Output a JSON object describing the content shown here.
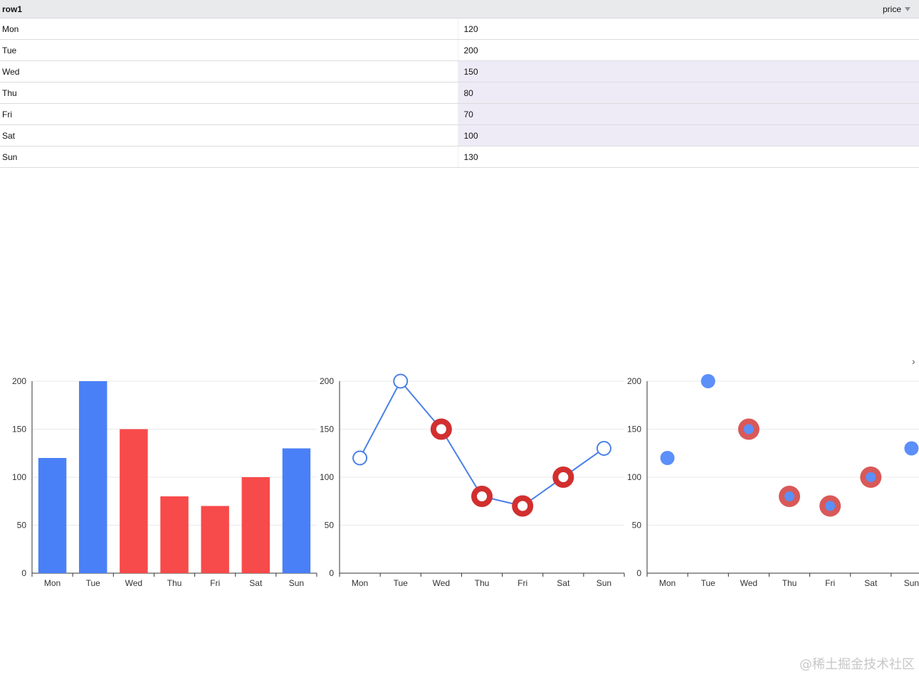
{
  "table": {
    "row_header": "row1",
    "value_header": "price",
    "rows": [
      {
        "label": "Mon",
        "value": "120"
      },
      {
        "label": "Tue",
        "value": "200"
      },
      {
        "label": "Wed",
        "value": "150"
      },
      {
        "label": "Thu",
        "value": "80"
      },
      {
        "label": "Fri",
        "value": "70"
      },
      {
        "label": "Sat",
        "value": "100"
      },
      {
        "label": "Sun",
        "value": "130"
      }
    ]
  },
  "watermark": "@稀土掘金技术社区",
  "next_arrow": "›",
  "chart_data": [
    {
      "type": "bar",
      "categories": [
        "Mon",
        "Tue",
        "Wed",
        "Thu",
        "Fri",
        "Sat",
        "Sun"
      ],
      "values": [
        120,
        200,
        150,
        80,
        70,
        100,
        130
      ],
      "highlighted": [
        "Wed",
        "Thu",
        "Fri",
        "Sat"
      ],
      "ylim": [
        0,
        200
      ],
      "yticks": [
        0,
        50,
        100,
        150,
        200
      ],
      "grid": true,
      "colors": {
        "base": "#4a80f7",
        "highlight": "#f74a4a"
      }
    },
    {
      "type": "line",
      "categories": [
        "Mon",
        "Tue",
        "Wed",
        "Thu",
        "Fri",
        "Sat",
        "Sun"
      ],
      "values": [
        120,
        200,
        150,
        80,
        70,
        100,
        130
      ],
      "highlighted": [
        "Wed",
        "Thu",
        "Fri",
        "Sat"
      ],
      "ylim": [
        0,
        200
      ],
      "yticks": [
        0,
        50,
        100,
        150,
        200
      ],
      "grid": true,
      "colors": {
        "line": "#4a80e8",
        "highlight": "#d22f2f"
      }
    },
    {
      "type": "scatter",
      "categories": [
        "Mon",
        "Tue",
        "Wed",
        "Thu",
        "Fri",
        "Sat",
        "Sun"
      ],
      "values": [
        120,
        200,
        150,
        80,
        70,
        100,
        130
      ],
      "highlighted": [
        "Wed",
        "Thu",
        "Fri",
        "Sat"
      ],
      "ylim": [
        0,
        200
      ],
      "yticks": [
        0,
        50,
        100,
        150,
        200
      ],
      "grid": true,
      "colors": {
        "point": "#5b8ff9",
        "highlight": "#d23c3c"
      }
    }
  ]
}
